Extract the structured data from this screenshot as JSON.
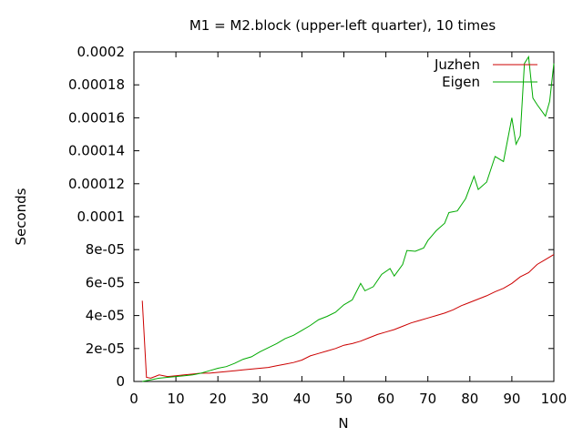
{
  "chart_data": {
    "type": "line",
    "title": "M1 = M2.block (upper-left quarter), 10 times",
    "xlabel": "N",
    "ylabel": "Seconds",
    "xlim": [
      0,
      100
    ],
    "ylim": [
      0,
      0.0002
    ],
    "xticks": [
      0,
      10,
      20,
      30,
      40,
      50,
      60,
      70,
      80,
      90,
      100
    ],
    "xtick_labels": [
      "0",
      "10",
      "20",
      "30",
      "40",
      "50",
      "60",
      "70",
      "80",
      "90",
      "100"
    ],
    "yticks": [
      0,
      2e-05,
      4e-05,
      6e-05,
      8e-05,
      0.0001,
      0.00012,
      0.00014,
      0.00016,
      0.00018,
      0.0002
    ],
    "ytick_labels": [
      "0",
      "2e-05",
      "4e-05",
      "6e-05",
      "8e-05",
      "0.0001",
      "0.00012",
      "0.00014",
      "0.00016",
      "0.00018",
      "0.0002"
    ],
    "grid": false,
    "legend_position": "top-right",
    "series": [
      {
        "name": "Juzhen",
        "color": "#cc0000",
        "x": [
          2,
          3,
          4,
          5,
          6,
          8,
          10,
          12,
          14,
          16,
          18,
          20,
          22,
          24,
          26,
          28,
          30,
          32,
          34,
          36,
          38,
          40,
          42,
          44,
          46,
          48,
          50,
          52,
          54,
          56,
          58,
          60,
          62,
          64,
          66,
          68,
          70,
          72,
          74,
          76,
          78,
          80,
          82,
          84,
          86,
          88,
          90,
          92,
          94,
          96,
          98,
          100
        ],
        "y": [
          4.9e-05,
          2.5e-06,
          2e-06,
          3e-06,
          4e-06,
          3e-06,
          3.5e-06,
          4e-06,
          4.5e-06,
          5e-06,
          5e-06,
          5.5e-06,
          6e-06,
          6.5e-06,
          7e-06,
          7.5e-06,
          8e-06,
          8.5e-06,
          9.5e-06,
          1.05e-05,
          1.15e-05,
          1.3e-05,
          1.55e-05,
          1.7e-05,
          1.85e-05,
          2e-05,
          2.2e-05,
          2.3e-05,
          2.45e-05,
          2.65e-05,
          2.85e-05,
          3e-05,
          3.15e-05,
          3.35e-05,
          3.55e-05,
          3.7e-05,
          3.85e-05,
          4e-05,
          4.15e-05,
          4.35e-05,
          4.6e-05,
          4.8e-05,
          5e-05,
          5.2e-05,
          5.45e-05,
          5.65e-05,
          5.95e-05,
          6.35e-05,
          6.6e-05,
          7.1e-05,
          7.4e-05,
          7.7e-05
        ]
      },
      {
        "name": "Eigen",
        "color": "#00aa00",
        "x": [
          2,
          4,
          6,
          8,
          10,
          12,
          14,
          16,
          18,
          20,
          22,
          24,
          26,
          28,
          30,
          32,
          34,
          36,
          38,
          40,
          42,
          44,
          46,
          48,
          50,
          52,
          54,
          55,
          57,
          59,
          61,
          62,
          64,
          65,
          67,
          69,
          70,
          72,
          74,
          75,
          77,
          79,
          81,
          82,
          84,
          86,
          88,
          90,
          91,
          92,
          93,
          94,
          95,
          96,
          98,
          99,
          100
        ],
        "y": [
          0,
          1e-06,
          2e-06,
          2.5e-06,
          3e-06,
          3.5e-06,
          4e-06,
          5e-06,
          6.5e-06,
          8e-06,
          9e-06,
          1.1e-05,
          1.35e-05,
          1.5e-05,
          1.8e-05,
          2.05e-05,
          2.3e-05,
          2.6e-05,
          2.8e-05,
          3.1e-05,
          3.4e-05,
          3.75e-05,
          3.95e-05,
          4.2e-05,
          4.65e-05,
          4.95e-05,
          5.95e-05,
          5.5e-05,
          5.75e-05,
          6.5e-05,
          6.85e-05,
          6.4e-05,
          7.1e-05,
          7.95e-05,
          7.9e-05,
          8.1e-05,
          8.55e-05,
          9.15e-05,
          9.6e-05,
          0.0001025,
          0.0001035,
          0.000111,
          0.0001245,
          0.0001165,
          0.000121,
          0.0001365,
          0.0001335,
          0.00016,
          0.000144,
          0.000149,
          0.000193,
          0.000197,
          0.000172,
          0.000168,
          0.000161,
          0.00017,
          0.000193
        ]
      }
    ]
  }
}
